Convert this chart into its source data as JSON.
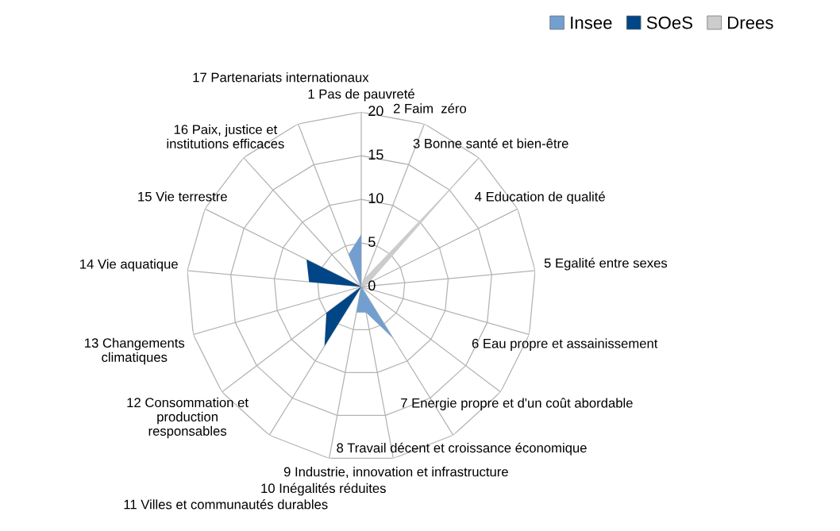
{
  "chart_data": {
    "type": "radar",
    "categories": [
      "1 Pas de pauvreté",
      "2 Faim  zéro",
      "3 Bonne santé et bien-être",
      "4 Education de qualité",
      "5 Egalité entre sexes",
      "6 Eau propre et assainissement",
      "7 Energie propre et d'un coût abordable",
      "8 Travail décent et croissance économique",
      "9 Industrie, innovation et infrastructure",
      "10 Inégalités réduites",
      "11 Villes et communautés durables",
      "12 Consommation et\nproduction\nresponsables",
      "13 Changements\nclimatiques",
      "14 Vie aquatique",
      "15 Vie terrestre",
      "16 Paix, justice et\ninstitutions efficaces",
      "17 Partenariats internationaux"
    ],
    "series": [
      {
        "name": "Insee",
        "color": "#729fcf",
        "values": [
          6,
          0,
          0,
          0,
          0,
          0,
          0,
          7,
          3,
          3,
          0,
          0,
          0,
          0,
          0,
          0,
          4
        ]
      },
      {
        "name": "SOeS",
        "color": "#004586",
        "values": [
          2,
          0,
          4,
          0,
          0,
          9,
          0,
          0,
          0,
          0,
          8,
          5,
          0,
          6,
          7,
          0,
          0
        ]
      },
      {
        "name": "Drees",
        "color": "#cccccc",
        "values": [
          0,
          1,
          17,
          1,
          0,
          0,
          0,
          0,
          0,
          0,
          0,
          0,
          0,
          0,
          0,
          0,
          0
        ]
      }
    ],
    "ylim": [
      0,
      20
    ],
    "yticks": [
      0,
      5,
      10,
      15,
      20
    ],
    "grid": true,
    "legend": "top right"
  }
}
